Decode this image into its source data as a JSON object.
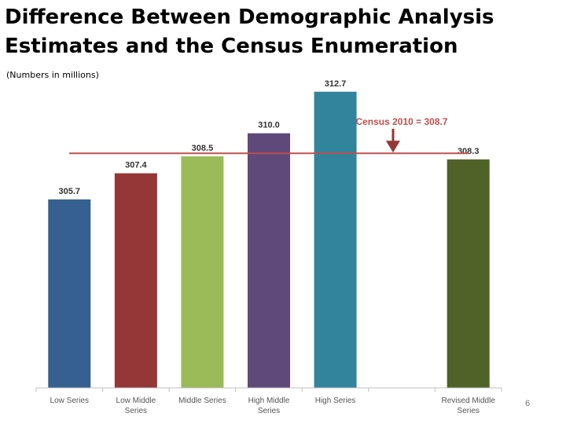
{
  "page": {
    "title": "Difference Between Demographic Analysis Estimates and the Census Enumeration",
    "subtitle": "(Numbers in millions)",
    "page_number": "6"
  },
  "chart_data": {
    "type": "bar",
    "title": "Difference Between Demographic Analysis Estimates and the Census Enumeration",
    "subtitle": "(Numbers in millions)",
    "categories": [
      "Low Series",
      "Low Middle Series",
      "Middle Series",
      "High Middle Series",
      "High Series",
      "",
      "Revised Middle Series"
    ],
    "category_lines": [
      [
        "Low Series"
      ],
      [
        "Low Middle",
        "Series"
      ],
      [
        "Middle Series"
      ],
      [
        "High Middle",
        "Series"
      ],
      [
        "High Series"
      ],
      [],
      [
        "Revised Middle",
        "Series"
      ]
    ],
    "values": [
      305.7,
      307.4,
      308.5,
      310.0,
      312.7,
      null,
      308.3
    ],
    "value_labels": [
      "305.7",
      "307.4",
      "308.5",
      "310.0",
      "312.7",
      "",
      "308.3"
    ],
    "colors": [
      "#35608f",
      "#953736",
      "#9bbb59",
      "#5f497a",
      "#31849b",
      null,
      "#4f6228"
    ],
    "reference_line": {
      "value": 308.7,
      "label": "Census 2010 = 308.7",
      "color": "#c0504d"
    },
    "xlabel": "",
    "ylabel": "",
    "grid": false,
    "legend": "none"
  }
}
